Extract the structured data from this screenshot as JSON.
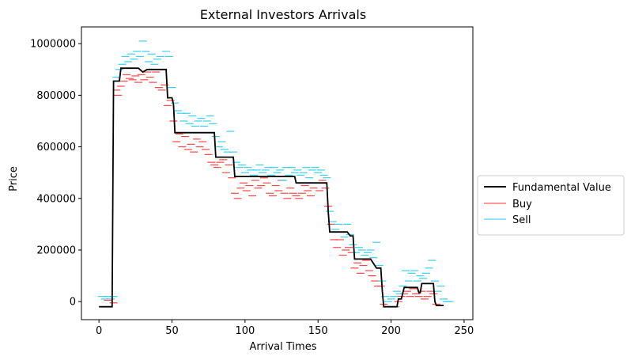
{
  "chart_data": {
    "type": "line",
    "title": "External Investors Arrivals",
    "xlabel": "Arrival Times",
    "ylabel": "Price",
    "xlim": [
      -12,
      256
    ],
    "ylim": [
      -70000,
      1065000
    ],
    "xticks": [
      0,
      50,
      100,
      150,
      200,
      250
    ],
    "yticks": [
      0,
      200000,
      400000,
      600000,
      800000,
      1000000
    ],
    "grid": false,
    "legend_position": "center-right outside",
    "series": [
      {
        "name": "Fundamental Value",
        "style": "step",
        "color": "#000000",
        "points": [
          [
            0,
            -20000
          ],
          [
            9,
            -20000
          ],
          [
            10,
            855000
          ],
          [
            14,
            855000
          ],
          [
            15,
            905000
          ],
          [
            27,
            905000
          ],
          [
            30,
            890000
          ],
          [
            33,
            900000
          ],
          [
            46,
            900000
          ],
          [
            47,
            790000
          ],
          [
            50,
            790000
          ],
          [
            51,
            765000
          ],
          [
            52,
            655000
          ],
          [
            79,
            655000
          ],
          [
            80,
            560000
          ],
          [
            92,
            560000
          ],
          [
            93,
            485000
          ],
          [
            134,
            485000
          ],
          [
            135,
            460000
          ],
          [
            156,
            460000
          ],
          [
            157,
            350000
          ],
          [
            158,
            270000
          ],
          [
            170,
            270000
          ],
          [
            172,
            255000
          ],
          [
            174,
            255000
          ],
          [
            175,
            165000
          ],
          [
            186,
            165000
          ],
          [
            190,
            130000
          ],
          [
            193,
            130000
          ],
          [
            194,
            40000
          ],
          [
            195,
            -20000
          ],
          [
            204,
            -20000
          ],
          [
            205,
            10000
          ],
          [
            207,
            10000
          ],
          [
            209,
            55000
          ],
          [
            218,
            55000
          ],
          [
            219,
            35000
          ],
          [
            220,
            35000
          ],
          [
            221,
            70000
          ],
          [
            229,
            70000
          ],
          [
            230,
            0
          ],
          [
            231,
            -15000
          ],
          [
            236,
            -15000
          ]
        ]
      },
      {
        "name": "Buy",
        "style": "dash-markers",
        "color": "#ff3333",
        "points": [
          [
            6,
            5000
          ],
          [
            10,
            -5000
          ],
          [
            12,
            820000
          ],
          [
            13,
            800000
          ],
          [
            15,
            835000
          ],
          [
            17,
            855000
          ],
          [
            19,
            880000
          ],
          [
            21,
            865000
          ],
          [
            23,
            860000
          ],
          [
            25,
            875000
          ],
          [
            27,
            850000
          ],
          [
            29,
            880000
          ],
          [
            31,
            860000
          ],
          [
            33,
            890000
          ],
          [
            35,
            870000
          ],
          [
            37,
            850000
          ],
          [
            39,
            890000
          ],
          [
            41,
            830000
          ],
          [
            43,
            820000
          ],
          [
            45,
            840000
          ],
          [
            47,
            760000
          ],
          [
            49,
            780000
          ],
          [
            51,
            700000
          ],
          [
            53,
            620000
          ],
          [
            55,
            650000
          ],
          [
            57,
            600000
          ],
          [
            59,
            640000
          ],
          [
            61,
            590000
          ],
          [
            63,
            610000
          ],
          [
            65,
            580000
          ],
          [
            67,
            630000
          ],
          [
            69,
            600000
          ],
          [
            71,
            620000
          ],
          [
            73,
            590000
          ],
          [
            75,
            570000
          ],
          [
            77,
            540000
          ],
          [
            79,
            530000
          ],
          [
            81,
            520000
          ],
          [
            83,
            540000
          ],
          [
            85,
            550000
          ],
          [
            87,
            500000
          ],
          [
            89,
            530000
          ],
          [
            91,
            480000
          ],
          [
            93,
            420000
          ],
          [
            95,
            400000
          ],
          [
            97,
            440000
          ],
          [
            99,
            460000
          ],
          [
            101,
            430000
          ],
          [
            103,
            450000
          ],
          [
            105,
            410000
          ],
          [
            107,
            470000
          ],
          [
            109,
            440000
          ],
          [
            111,
            450000
          ],
          [
            113,
            480000
          ],
          [
            115,
            460000
          ],
          [
            117,
            420000
          ],
          [
            119,
            410000
          ],
          [
            121,
            450000
          ],
          [
            123,
            430000
          ],
          [
            125,
            470000
          ],
          [
            127,
            420000
          ],
          [
            129,
            400000
          ],
          [
            131,
            440000
          ],
          [
            133,
            420000
          ],
          [
            135,
            410000
          ],
          [
            137,
            400000
          ],
          [
            139,
            420000
          ],
          [
            141,
            450000
          ],
          [
            143,
            430000
          ],
          [
            145,
            410000
          ],
          [
            147,
            440000
          ],
          [
            149,
            460000
          ],
          [
            151,
            430000
          ],
          [
            153,
            470000
          ],
          [
            155,
            440000
          ],
          [
            157,
            370000
          ],
          [
            159,
            300000
          ],
          [
            161,
            240000
          ],
          [
            163,
            210000
          ],
          [
            165,
            240000
          ],
          [
            167,
            180000
          ],
          [
            169,
            200000
          ],
          [
            171,
            210000
          ],
          [
            173,
            190000
          ],
          [
            175,
            130000
          ],
          [
            177,
            150000
          ],
          [
            179,
            110000
          ],
          [
            181,
            140000
          ],
          [
            183,
            160000
          ],
          [
            185,
            120000
          ],
          [
            187,
            100000
          ],
          [
            189,
            80000
          ],
          [
            191,
            60000
          ],
          [
            193,
            60000
          ],
          [
            195,
            -10000
          ],
          [
            199,
            -20000
          ],
          [
            203,
            -20000
          ],
          [
            205,
            0
          ],
          [
            207,
            20000
          ],
          [
            209,
            30000
          ],
          [
            211,
            40000
          ],
          [
            213,
            20000
          ],
          [
            215,
            50000
          ],
          [
            217,
            30000
          ],
          [
            219,
            20000
          ],
          [
            221,
            40000
          ],
          [
            223,
            10000
          ],
          [
            225,
            20000
          ],
          [
            227,
            40000
          ],
          [
            229,
            30000
          ],
          [
            231,
            -10000
          ]
        ]
      },
      {
        "name": "Sell",
        "style": "dash-markers",
        "color": "#22ccee",
        "points": [
          [
            2,
            20000
          ],
          [
            4,
            10000
          ],
          [
            6,
            20000
          ],
          [
            8,
            10000
          ],
          [
            10,
            20000
          ],
          [
            12,
            870000
          ],
          [
            14,
            900000
          ],
          [
            16,
            920000
          ],
          [
            18,
            950000
          ],
          [
            20,
            930000
          ],
          [
            22,
            960000
          ],
          [
            24,
            940000
          ],
          [
            26,
            970000
          ],
          [
            28,
            950000
          ],
          [
            30,
            1010000
          ],
          [
            32,
            970000
          ],
          [
            34,
            930000
          ],
          [
            36,
            960000
          ],
          [
            38,
            920000
          ],
          [
            40,
            940000
          ],
          [
            42,
            950000
          ],
          [
            44,
            900000
          ],
          [
            46,
            970000
          ],
          [
            48,
            950000
          ],
          [
            50,
            830000
          ],
          [
            52,
            770000
          ],
          [
            54,
            740000
          ],
          [
            56,
            730000
          ],
          [
            58,
            700000
          ],
          [
            60,
            730000
          ],
          [
            62,
            690000
          ],
          [
            64,
            720000
          ],
          [
            66,
            680000
          ],
          [
            68,
            700000
          ],
          [
            70,
            710000
          ],
          [
            72,
            680000
          ],
          [
            74,
            700000
          ],
          [
            76,
            720000
          ],
          [
            78,
            690000
          ],
          [
            80,
            640000
          ],
          [
            82,
            600000
          ],
          [
            84,
            620000
          ],
          [
            86,
            590000
          ],
          [
            88,
            580000
          ],
          [
            90,
            660000
          ],
          [
            92,
            580000
          ],
          [
            94,
            540000
          ],
          [
            96,
            520000
          ],
          [
            98,
            530000
          ],
          [
            100,
            500000
          ],
          [
            102,
            520000
          ],
          [
            104,
            510000
          ],
          [
            106,
            490000
          ],
          [
            108,
            510000
          ],
          [
            110,
            530000
          ],
          [
            112,
            500000
          ],
          [
            114,
            510000
          ],
          [
            116,
            520000
          ],
          [
            118,
            490000
          ],
          [
            120,
            520000
          ],
          [
            122,
            500000
          ],
          [
            124,
            510000
          ],
          [
            126,
            470000
          ],
          [
            128,
            520000
          ],
          [
            130,
            490000
          ],
          [
            132,
            520000
          ],
          [
            134,
            500000
          ],
          [
            136,
            510000
          ],
          [
            138,
            490000
          ],
          [
            140,
            500000
          ],
          [
            142,
            520000
          ],
          [
            144,
            480000
          ],
          [
            146,
            510000
          ],
          [
            148,
            520000
          ],
          [
            150,
            500000
          ],
          [
            152,
            510000
          ],
          [
            154,
            490000
          ],
          [
            156,
            480000
          ],
          [
            158,
            350000
          ],
          [
            160,
            310000
          ],
          [
            162,
            280000
          ],
          [
            164,
            300000
          ],
          [
            166,
            270000
          ],
          [
            168,
            250000
          ],
          [
            170,
            300000
          ],
          [
            172,
            260000
          ],
          [
            174,
            220000
          ],
          [
            176,
            190000
          ],
          [
            178,
            210000
          ],
          [
            180,
            200000
          ],
          [
            182,
            180000
          ],
          [
            184,
            190000
          ],
          [
            186,
            200000
          ],
          [
            188,
            170000
          ],
          [
            190,
            230000
          ],
          [
            192,
            140000
          ],
          [
            194,
            80000
          ],
          [
            196,
            20000
          ],
          [
            198,
            0
          ],
          [
            200,
            10000
          ],
          [
            202,
            20000
          ],
          [
            204,
            40000
          ],
          [
            206,
            30000
          ],
          [
            208,
            60000
          ],
          [
            210,
            120000
          ],
          [
            212,
            80000
          ],
          [
            214,
            110000
          ],
          [
            216,
            120000
          ],
          [
            218,
            80000
          ],
          [
            220,
            100000
          ],
          [
            222,
            90000
          ],
          [
            224,
            110000
          ],
          [
            226,
            130000
          ],
          [
            228,
            160000
          ],
          [
            230,
            80000
          ],
          [
            232,
            40000
          ],
          [
            234,
            60000
          ],
          [
            236,
            10000
          ],
          [
            238,
            0
          ],
          [
            240,
            0
          ]
        ]
      }
    ]
  },
  "colors": {
    "fundamental": "#000000",
    "buy": "#ff3333",
    "sell": "#22ccee",
    "axis": "#000000"
  }
}
